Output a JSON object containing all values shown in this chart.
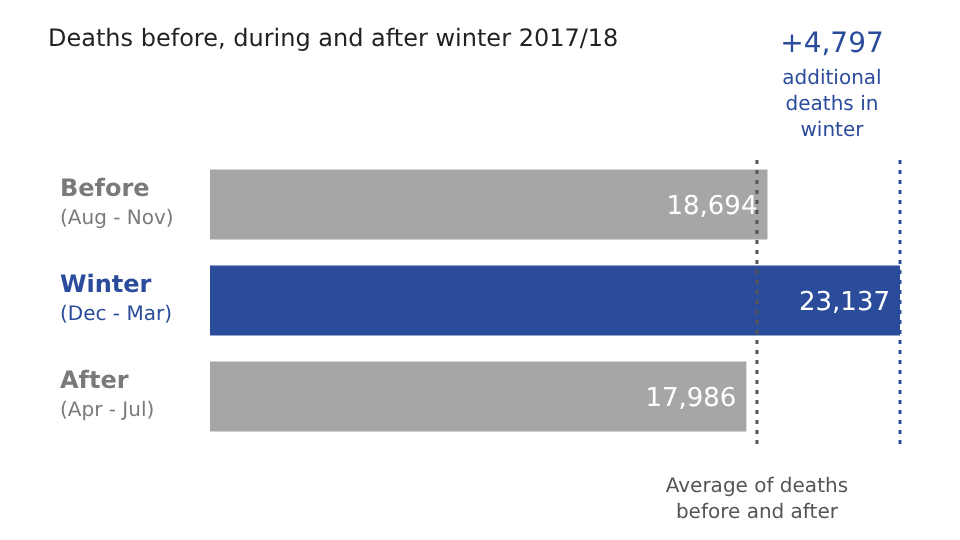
{
  "chart_data": {
    "type": "bar",
    "orientation": "horizontal",
    "title": "Deaths before, during and after winter 2017/18",
    "categories": [
      "Before\n(Aug - Nov)",
      "Winter\n(Dec - Mar)",
      "After\n(Apr - Jul)"
    ],
    "values": [
      18694,
      23137,
      17986
    ],
    "colors": [
      "#a6a6a6",
      "#2b4c9b",
      "#a6a6a6"
    ],
    "value_labels": [
      "18,694",
      "23,137",
      "17,986"
    ],
    "ref_lines": [
      {
        "axis": "x",
        "value": 18340,
        "label": "Average of deaths\nbefore and after",
        "color": "#555555",
        "line_style": "dotted"
      },
      {
        "axis": "x",
        "value": 23137,
        "label": "+4,797\nadditional\ndeaths in\nwinter",
        "color": "#2b4c9b",
        "line_style": "dotted"
      }
    ]
  }
}
